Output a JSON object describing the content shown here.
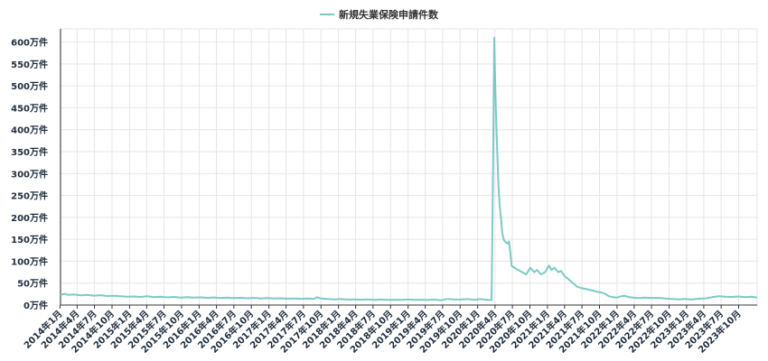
{
  "chart_data": {
    "type": "line",
    "legend_position": "top-center",
    "grid": true,
    "ylim": [
      0,
      6300000
    ],
    "y_ticks": [
      {
        "value": 0,
        "label": "0万件"
      },
      {
        "value": 500000,
        "label": "50万件"
      },
      {
        "value": 1000000,
        "label": "100万件"
      },
      {
        "value": 1500000,
        "label": "150万件"
      },
      {
        "value": 2000000,
        "label": "200万件"
      },
      {
        "value": 2500000,
        "label": "250万件"
      },
      {
        "value": 3000000,
        "label": "300万件"
      },
      {
        "value": 3500000,
        "label": "350万件"
      },
      {
        "value": 4000000,
        "label": "400万件"
      },
      {
        "value": 4500000,
        "label": "450万件"
      },
      {
        "value": 5000000,
        "label": "500万件"
      },
      {
        "value": 5500000,
        "label": "550万件"
      },
      {
        "value": 6000000,
        "label": "600万件"
      }
    ],
    "x_ticks": [
      {
        "value": "2014-01",
        "label": "2014年1月"
      },
      {
        "value": "2014-04",
        "label": "2014年4月"
      },
      {
        "value": "2014-07",
        "label": "2014年7月"
      },
      {
        "value": "2014-10",
        "label": "2014年10月"
      },
      {
        "value": "2015-01",
        "label": "2015年1月"
      },
      {
        "value": "2015-04",
        "label": "2015年4月"
      },
      {
        "value": "2015-07",
        "label": "2015年7月"
      },
      {
        "value": "2015-10",
        "label": "2015年10月"
      },
      {
        "value": "2016-01",
        "label": "2016年1月"
      },
      {
        "value": "2016-04",
        "label": "2016年4月"
      },
      {
        "value": "2016-07",
        "label": "2016年7月"
      },
      {
        "value": "2016-10",
        "label": "2016年10月"
      },
      {
        "value": "2017-01",
        "label": "2017年1月"
      },
      {
        "value": "2017-04",
        "label": "2017年4月"
      },
      {
        "value": "2017-07",
        "label": "2017年7月"
      },
      {
        "value": "2017-10",
        "label": "2017年10月"
      },
      {
        "value": "2018-01",
        "label": "2018年1月"
      },
      {
        "value": "2018-04",
        "label": "2018年4月"
      },
      {
        "value": "2018-07",
        "label": "2018年7月"
      },
      {
        "value": "2018-10",
        "label": "2018年10月"
      },
      {
        "value": "2019-01",
        "label": "2019年1月"
      },
      {
        "value": "2019-04",
        "label": "2019年4月"
      },
      {
        "value": "2019-07",
        "label": "2019年7月"
      },
      {
        "value": "2019-10",
        "label": "2019年10月"
      },
      {
        "value": "2020-01",
        "label": "2020年1月"
      },
      {
        "value": "2020-04",
        "label": "2020年4月"
      },
      {
        "value": "2020-07",
        "label": "2020年7月"
      },
      {
        "value": "2020-10",
        "label": "2020年10月"
      },
      {
        "value": "2021-01",
        "label": "2021年1月"
      },
      {
        "value": "2021-04",
        "label": "2021年4月"
      },
      {
        "value": "2021-07",
        "label": "2021年7月"
      },
      {
        "value": "2021-10",
        "label": "2021年10月"
      },
      {
        "value": "2022-01",
        "label": "2022年1月"
      },
      {
        "value": "2022-04",
        "label": "2022年4月"
      },
      {
        "value": "2022-07",
        "label": "2022年7月"
      },
      {
        "value": "2022-10",
        "label": "2022年10月"
      },
      {
        "value": "2023-01",
        "label": "2023年1月"
      },
      {
        "value": "2023-04",
        "label": "2023年4月"
      },
      {
        "value": "2023-07",
        "label": "2023年7月"
      },
      {
        "value": "2023-10",
        "label": "2023年10月"
      }
    ],
    "x_range": [
      "2014-01-04",
      "2024-01-06"
    ],
    "series": [
      {
        "name": "新規失業保険申請件数",
        "color": "#7ccac3",
        "points": [
          [
            "2014-01-04",
            230000
          ],
          [
            "2014-01-25",
            260000
          ],
          [
            "2014-02-15",
            230000
          ],
          [
            "2014-03-15",
            240000
          ],
          [
            "2014-04-19",
            220000
          ],
          [
            "2014-05-24",
            230000
          ],
          [
            "2014-06-28",
            215000
          ],
          [
            "2014-08-02",
            225000
          ],
          [
            "2014-09-06",
            205000
          ],
          [
            "2014-10-11",
            210000
          ],
          [
            "2014-11-15",
            200000
          ],
          [
            "2014-12-20",
            190000
          ],
          [
            "2015-01-24",
            195000
          ],
          [
            "2015-02-28",
            185000
          ],
          [
            "2015-04-04",
            200000
          ],
          [
            "2015-05-09",
            180000
          ],
          [
            "2015-06-13",
            190000
          ],
          [
            "2015-07-18",
            175000
          ],
          [
            "2015-08-22",
            185000
          ],
          [
            "2015-09-26",
            170000
          ],
          [
            "2015-10-31",
            180000
          ],
          [
            "2015-12-05",
            168000
          ],
          [
            "2016-01-09",
            175000
          ],
          [
            "2016-02-13",
            165000
          ],
          [
            "2016-03-19",
            172000
          ],
          [
            "2016-04-23",
            160000
          ],
          [
            "2016-05-28",
            168000
          ],
          [
            "2016-07-02",
            158000
          ],
          [
            "2016-08-06",
            165000
          ],
          [
            "2016-09-10",
            155000
          ],
          [
            "2016-10-15",
            162000
          ],
          [
            "2016-11-19",
            150000
          ],
          [
            "2016-12-24",
            158000
          ],
          [
            "2017-01-28",
            148000
          ],
          [
            "2017-03-04",
            155000
          ],
          [
            "2017-04-08",
            145000
          ],
          [
            "2017-05-13",
            150000
          ],
          [
            "2017-06-17",
            142000
          ],
          [
            "2017-07-22",
            148000
          ],
          [
            "2017-08-26",
            140000
          ],
          [
            "2017-09-09",
            180000
          ],
          [
            "2017-09-30",
            150000
          ],
          [
            "2017-11-04",
            138000
          ],
          [
            "2017-12-09",
            130000
          ],
          [
            "2018-01-13",
            135000
          ],
          [
            "2018-02-17",
            125000
          ],
          [
            "2018-03-24",
            130000
          ],
          [
            "2018-04-28",
            122000
          ],
          [
            "2018-06-02",
            128000
          ],
          [
            "2018-07-07",
            120000
          ],
          [
            "2018-08-11",
            125000
          ],
          [
            "2018-09-15",
            118000
          ],
          [
            "2018-10-20",
            122000
          ],
          [
            "2018-11-24",
            120000
          ],
          [
            "2018-12-29",
            125000
          ],
          [
            "2019-02-02",
            118000
          ],
          [
            "2019-03-09",
            122000
          ],
          [
            "2019-04-13",
            115000
          ],
          [
            "2019-05-18",
            125000
          ],
          [
            "2019-06-22",
            110000
          ],
          [
            "2019-07-27",
            140000
          ],
          [
            "2019-08-31",
            130000
          ],
          [
            "2019-10-05",
            125000
          ],
          [
            "2019-11-09",
            135000
          ],
          [
            "2019-12-14",
            120000
          ],
          [
            "2020-01-18",
            135000
          ],
          [
            "2020-02-22",
            120000
          ],
          [
            "2020-03-14",
            115000
          ],
          [
            "2020-03-21",
            2900000
          ],
          [
            "2020-03-28",
            6100000
          ],
          [
            "2020-04-04",
            4700000
          ],
          [
            "2020-04-11",
            3700000
          ],
          [
            "2020-04-18",
            2800000
          ],
          [
            "2020-04-25",
            2300000
          ],
          [
            "2020-05-02",
            2000000
          ],
          [
            "2020-05-09",
            1650000
          ],
          [
            "2020-05-16",
            1500000
          ],
          [
            "2020-05-23",
            1450000
          ],
          [
            "2020-06-06",
            1400000
          ],
          [
            "2020-06-13",
            1450000
          ],
          [
            "2020-06-20",
            1200000
          ],
          [
            "2020-06-27",
            900000
          ],
          [
            "2020-07-11",
            850000
          ],
          [
            "2020-08-01",
            800000
          ],
          [
            "2020-08-22",
            750000
          ],
          [
            "2020-09-12",
            700000
          ],
          [
            "2020-10-03",
            850000
          ],
          [
            "2020-10-24",
            750000
          ],
          [
            "2020-11-07",
            800000
          ],
          [
            "2020-11-28",
            700000
          ],
          [
            "2020-12-19",
            750000
          ],
          [
            "2021-01-09",
            900000
          ],
          [
            "2021-01-23",
            800000
          ],
          [
            "2021-02-06",
            850000
          ],
          [
            "2021-02-27",
            750000
          ],
          [
            "2021-03-13",
            780000
          ],
          [
            "2021-04-03",
            650000
          ],
          [
            "2021-04-24",
            580000
          ],
          [
            "2021-05-15",
            500000
          ],
          [
            "2021-06-05",
            420000
          ],
          [
            "2021-06-26",
            390000
          ],
          [
            "2021-07-17",
            370000
          ],
          [
            "2021-08-07",
            350000
          ],
          [
            "2021-08-28",
            330000
          ],
          [
            "2021-09-18",
            300000
          ],
          [
            "2021-10-09",
            290000
          ],
          [
            "2021-10-30",
            260000
          ],
          [
            "2021-11-20",
            200000
          ],
          [
            "2021-12-11",
            180000
          ],
          [
            "2022-01-01",
            170000
          ],
          [
            "2022-01-22",
            200000
          ],
          [
            "2022-02-12",
            210000
          ],
          [
            "2022-03-05",
            180000
          ],
          [
            "2022-03-26",
            170000
          ],
          [
            "2022-04-23",
            160000
          ],
          [
            "2022-05-28",
            170000
          ],
          [
            "2022-07-02",
            160000
          ],
          [
            "2022-08-06",
            165000
          ],
          [
            "2022-09-10",
            150000
          ],
          [
            "2022-10-15",
            140000
          ],
          [
            "2022-11-19",
            130000
          ],
          [
            "2022-12-24",
            140000
          ],
          [
            "2023-01-28",
            125000
          ],
          [
            "2023-03-04",
            145000
          ],
          [
            "2023-04-08",
            150000
          ],
          [
            "2023-05-13",
            180000
          ],
          [
            "2023-06-17",
            200000
          ],
          [
            "2023-07-22",
            190000
          ],
          [
            "2023-08-26",
            185000
          ],
          [
            "2023-09-30",
            195000
          ],
          [
            "2023-11-04",
            180000
          ],
          [
            "2023-12-09",
            190000
          ],
          [
            "2024-01-06",
            170000
          ]
        ]
      }
    ]
  }
}
